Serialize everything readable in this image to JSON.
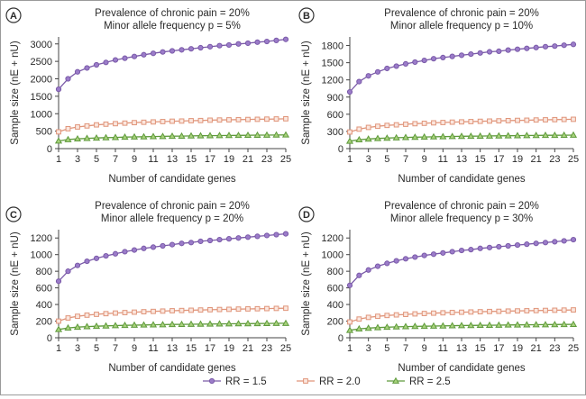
{
  "chart_data": [
    {
      "type": "line",
      "panel_label": "A",
      "title": "Prevalence of chronic pain = 20%",
      "subtitle": "Minor allele frequency p = 5%",
      "xlabel": "Number of candidate genes",
      "ylabel": "Sample size (nE + nU)",
      "ylim": [
        0,
        3200
      ],
      "yticks": [
        0,
        500,
        1000,
        1500,
        2000,
        2500,
        3000
      ],
      "xticks": [
        1,
        3,
        5,
        7,
        9,
        11,
        13,
        15,
        17,
        19,
        21,
        23,
        25
      ],
      "x": [
        1,
        2,
        3,
        4,
        5,
        6,
        7,
        8,
        9,
        10,
        11,
        12,
        13,
        14,
        15,
        16,
        17,
        18,
        19,
        20,
        21,
        22,
        23,
        24,
        25
      ],
      "series": [
        {
          "name": "RR = 1.5",
          "values": [
            1700,
            2000,
            2200,
            2310,
            2400,
            2470,
            2540,
            2590,
            2640,
            2690,
            2730,
            2770,
            2800,
            2830,
            2860,
            2890,
            2920,
            2950,
            2970,
            3000,
            3020,
            3050,
            3070,
            3100,
            3130
          ]
        },
        {
          "name": "RR = 2.0",
          "values": [
            480,
            570,
            620,
            650,
            680,
            700,
            715,
            730,
            745,
            755,
            765,
            775,
            785,
            790,
            800,
            805,
            815,
            820,
            825,
            830,
            835,
            840,
            845,
            850,
            855
          ]
        },
        {
          "name": "RR = 2.5",
          "values": [
            220,
            260,
            280,
            295,
            305,
            315,
            320,
            330,
            335,
            340,
            345,
            350,
            355,
            360,
            365,
            368,
            372,
            375,
            378,
            380,
            383,
            386,
            388,
            390,
            393
          ]
        }
      ]
    },
    {
      "type": "line",
      "panel_label": "B",
      "title": "Prevalence of chronic pain = 20%",
      "subtitle": "Minor allele frequency p = 10%",
      "xlabel": "Number of candidate genes",
      "ylabel": "Sample size (nE + nU)",
      "ylim": [
        0,
        1950
      ],
      "yticks": [
        0,
        300,
        600,
        900,
        1200,
        1500,
        1800
      ],
      "xticks": [
        1,
        3,
        5,
        7,
        9,
        11,
        13,
        15,
        17,
        19,
        21,
        23,
        25
      ],
      "x": [
        1,
        2,
        3,
        4,
        5,
        6,
        7,
        8,
        9,
        10,
        11,
        12,
        13,
        14,
        15,
        16,
        17,
        18,
        19,
        20,
        21,
        22,
        23,
        24,
        25
      ],
      "series": [
        {
          "name": "RR = 1.5",
          "values": [
            990,
            1170,
            1270,
            1340,
            1400,
            1440,
            1480,
            1510,
            1540,
            1570,
            1590,
            1610,
            1630,
            1650,
            1670,
            1690,
            1700,
            1720,
            1735,
            1750,
            1765,
            1780,
            1790,
            1805,
            1820
          ]
        },
        {
          "name": "RR = 2.0",
          "values": [
            290,
            340,
            370,
            390,
            405,
            415,
            425,
            435,
            442,
            450,
            456,
            462,
            467,
            472,
            477,
            481,
            485,
            489,
            493,
            496,
            500,
            503,
            506,
            509,
            512
          ]
        },
        {
          "name": "RR = 2.5",
          "values": [
            130,
            155,
            168,
            177,
            184,
            190,
            195,
            199,
            203,
            206,
            209,
            212,
            215,
            217,
            219,
            221,
            223,
            225,
            227,
            229,
            230,
            232,
            233,
            235,
            236
          ]
        }
      ]
    },
    {
      "type": "line",
      "panel_label": "C",
      "title": "Prevalence of chronic pain = 20%",
      "subtitle": "Minor allele frequency p = 20%",
      "xlabel": "Number of candidate genes",
      "ylabel": "Sample size (nE + nU)",
      "ylim": [
        0,
        1300
      ],
      "yticks": [
        0,
        200,
        400,
        600,
        800,
        1000,
        1200
      ],
      "xticks": [
        1,
        3,
        5,
        7,
        9,
        11,
        13,
        15,
        17,
        19,
        21,
        23,
        25
      ],
      "x": [
        1,
        2,
        3,
        4,
        5,
        6,
        7,
        8,
        9,
        10,
        11,
        12,
        13,
        14,
        15,
        16,
        17,
        18,
        19,
        20,
        21,
        22,
        23,
        24,
        25
      ],
      "series": [
        {
          "name": "RR = 1.5",
          "values": [
            680,
            800,
            870,
            920,
            955,
            985,
            1010,
            1035,
            1055,
            1075,
            1090,
            1105,
            1120,
            1135,
            1145,
            1160,
            1170,
            1180,
            1190,
            1200,
            1210,
            1220,
            1230,
            1240,
            1250
          ]
        },
        {
          "name": "RR = 2.0",
          "values": [
            200,
            238,
            258,
            272,
            282,
            290,
            297,
            303,
            308,
            313,
            317,
            321,
            325,
            328,
            331,
            334,
            337,
            340,
            342,
            345,
            347,
            349,
            351,
            353,
            355
          ]
        },
        {
          "name": "RR = 2.5",
          "values": [
            100,
            118,
            128,
            134,
            139,
            143,
            146,
            149,
            152,
            154,
            156,
            158,
            160,
            161,
            163,
            164,
            165,
            167,
            168,
            169,
            170,
            171,
            172,
            173,
            174
          ]
        }
      ]
    },
    {
      "type": "line",
      "panel_label": "D",
      "title": "Prevalence of chronic pain = 20%",
      "subtitle": "Minor allele frequency p = 30%",
      "xlabel": "Number of candidate genes",
      "ylabel": "Sample size (nE + nU)",
      "ylim": [
        0,
        1300
      ],
      "yticks": [
        0,
        200,
        400,
        600,
        800,
        1000,
        1200
      ],
      "xticks": [
        1,
        3,
        5,
        7,
        9,
        11,
        13,
        15,
        17,
        19,
        21,
        23,
        25
      ],
      "x": [
        1,
        2,
        3,
        4,
        5,
        6,
        7,
        8,
        9,
        10,
        11,
        12,
        13,
        14,
        15,
        16,
        17,
        18,
        19,
        20,
        21,
        22,
        23,
        24,
        25
      ],
      "series": [
        {
          "name": "RR = 1.5",
          "values": [
            630,
            750,
            815,
            860,
            895,
            925,
            950,
            970,
            990,
            1005,
            1020,
            1035,
            1050,
            1060,
            1075,
            1085,
            1095,
            1105,
            1115,
            1125,
            1135,
            1145,
            1155,
            1165,
            1180
          ]
        },
        {
          "name": "RR = 2.0",
          "values": [
            190,
            225,
            245,
            258,
            268,
            275,
            281,
            287,
            292,
            296,
            300,
            304,
            307,
            310,
            313,
            316,
            318,
            321,
            323,
            325,
            327,
            329,
            331,
            333,
            335
          ]
        },
        {
          "name": "RR = 2.5",
          "values": [
            90,
            107,
            116,
            122,
            127,
            131,
            134,
            137,
            139,
            141,
            143,
            145,
            147,
            148,
            150,
            151,
            152,
            154,
            155,
            156,
            157,
            158,
            159,
            160,
            161
          ]
        }
      ]
    }
  ],
  "series_styles": [
    {
      "name": "RR = 1.5",
      "color": "#7a5aa8",
      "fill": "#9b7cc9",
      "marker": "circle"
    },
    {
      "name": "RR = 2.0",
      "color": "#e0957a",
      "fill": "#fbe7df",
      "marker": "square"
    },
    {
      "name": "RR = 2.5",
      "color": "#5f9a3c",
      "fill": "#a8d27c",
      "marker": "triangle"
    }
  ],
  "legend": {
    "position": "bottom-right",
    "items": [
      "RR = 1.5",
      "RR = 2.0",
      "RR = 2.5"
    ]
  },
  "axis_color": "#444444"
}
